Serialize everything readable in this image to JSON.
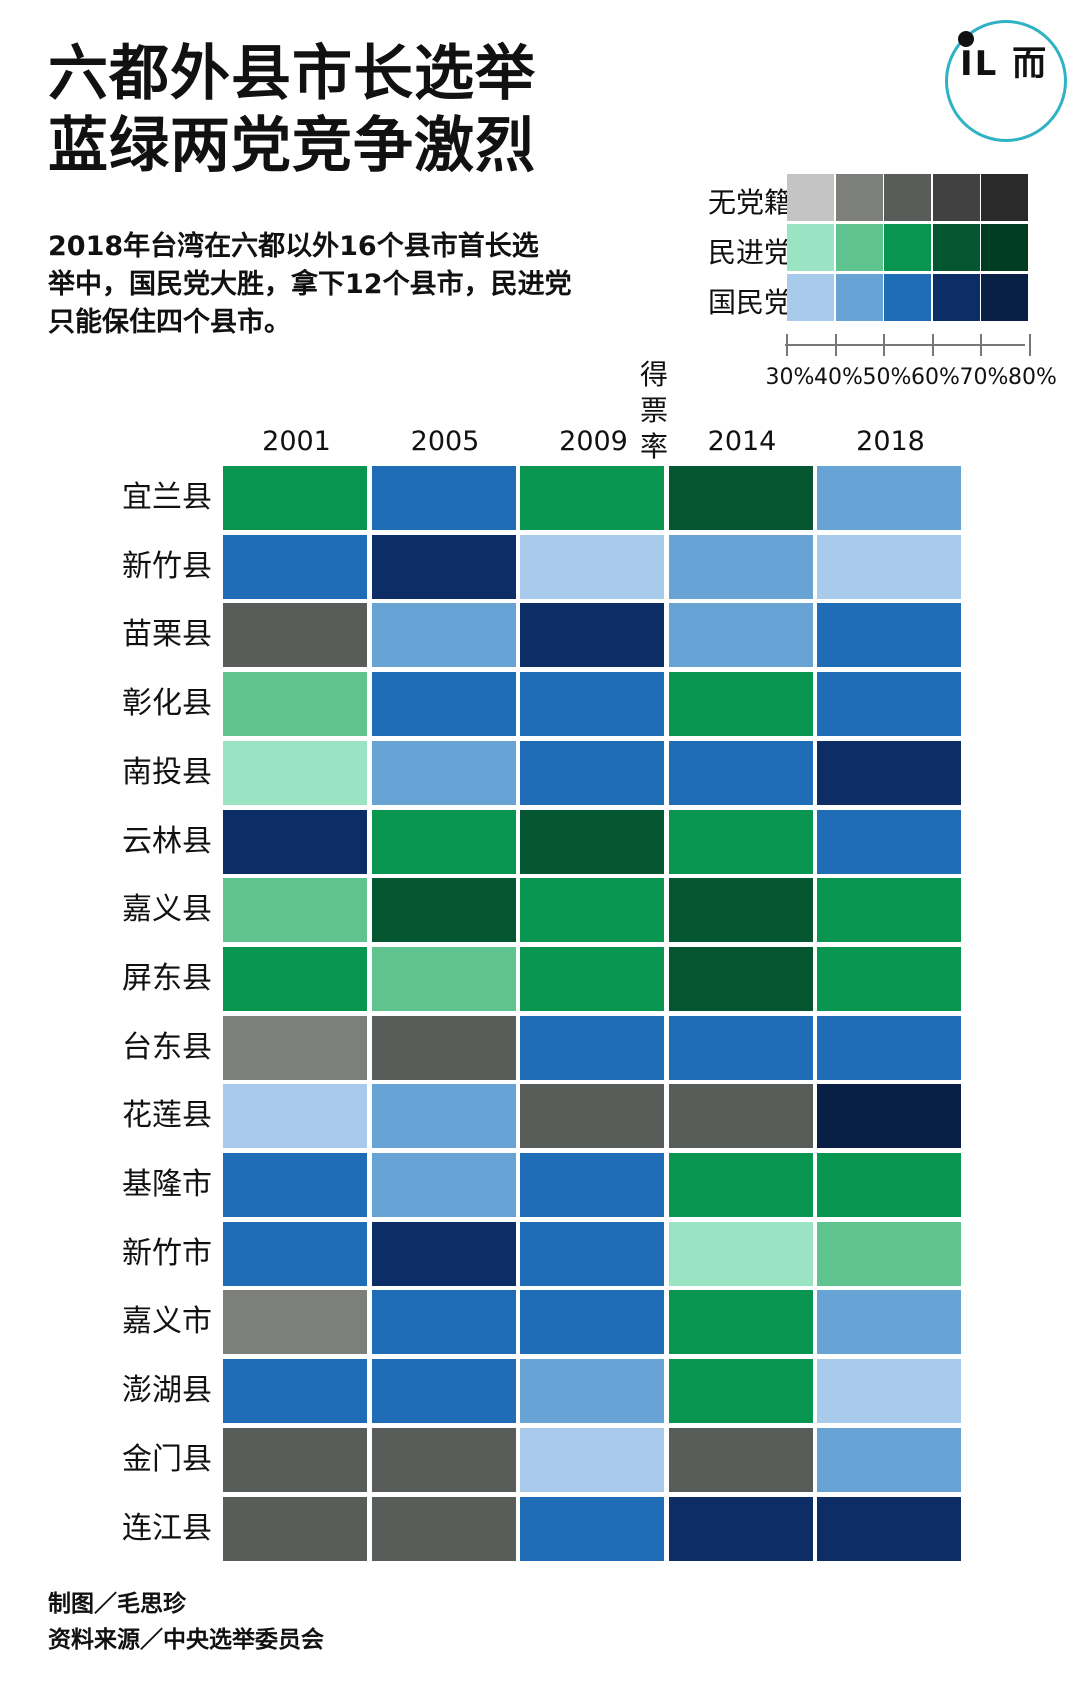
{
  "title_lines": [
    "六都外县市长选举",
    "蓝绿两党竞争激烈"
  ],
  "subtitle_lines": [
    "2018年台湾在六都以外16个县市首长选",
    "举中，国民党大胜，拿下12个县市，民进党",
    "只能保住四个县市。"
  ],
  "logo": {
    "icon": "端-logo-icon",
    "mark": "IL 而",
    "ring_color": "#2fb3c4"
  },
  "legend": {
    "rows": [
      {
        "party": "无党籍",
        "colors": [
          "#c4c4c4",
          "#7d7f7b",
          "#595d59",
          "#414141",
          "#2a2a2a"
        ]
      },
      {
        "party": "民进党",
        "colors": [
          "#9be4c3",
          "#5ec38f",
          "#07954f",
          "#045630",
          "#003d20"
        ]
      },
      {
        "party": "国民党",
        "colors": [
          "#a8cbec",
          "#67a3d5",
          "#1f6db7",
          "#0c2d66",
          "#0a1f45"
        ]
      }
    ],
    "axis_title": "得票率",
    "ticks": [
      "30%",
      "40%",
      "50%",
      "60%",
      "70%",
      "80%"
    ]
  },
  "chart_data": {
    "type": "heatmap",
    "title": "六都外县市长选举 蓝绿两党竞争激烈",
    "x": [
      "2001",
      "2005",
      "2009",
      "2014",
      "2018"
    ],
    "y": [
      "宜兰县",
      "新竹县",
      "苗栗县",
      "彰化县",
      "南投县",
      "云林县",
      "嘉义县",
      "屏东县",
      "台东县",
      "花莲县",
      "基隆市",
      "新竹市",
      "嘉义市",
      "澎湖县",
      "金门县",
      "连江县"
    ],
    "value_meaning": "party of winner and vote-share bin index (0:30-40%, 1:40-50%, 2:50-60%, 3:60-70%, 4:70-80%)",
    "cells": [
      [
        [
          "民进党",
          2
        ],
        [
          "国民党",
          2
        ],
        [
          "民进党",
          2
        ],
        [
          "民进党",
          3
        ],
        [
          "国民党",
          1
        ]
      ],
      [
        [
          "国民党",
          2
        ],
        [
          "国民党",
          3
        ],
        [
          "国民党",
          0
        ],
        [
          "国民党",
          1
        ],
        [
          "国民党",
          0
        ]
      ],
      [
        [
          "无党籍",
          2
        ],
        [
          "国民党",
          1
        ],
        [
          "国民党",
          3
        ],
        [
          "国民党",
          1
        ],
        [
          "国民党",
          2
        ]
      ],
      [
        [
          "民进党",
          1
        ],
        [
          "国民党",
          2
        ],
        [
          "国民党",
          2
        ],
        [
          "民进党",
          2
        ],
        [
          "国民党",
          2
        ]
      ],
      [
        [
          "民进党",
          0
        ],
        [
          "国民党",
          1
        ],
        [
          "国民党",
          2
        ],
        [
          "国民党",
          2
        ],
        [
          "国民党",
          3
        ]
      ],
      [
        [
          "国民党",
          3
        ],
        [
          "民进党",
          2
        ],
        [
          "民进党",
          3
        ],
        [
          "民进党",
          2
        ],
        [
          "国民党",
          2
        ]
      ],
      [
        [
          "民进党",
          1
        ],
        [
          "民进党",
          3
        ],
        [
          "民进党",
          2
        ],
        [
          "民进党",
          3
        ],
        [
          "民进党",
          2
        ]
      ],
      [
        [
          "民进党",
          2
        ],
        [
          "民进党",
          1
        ],
        [
          "民进党",
          2
        ],
        [
          "民进党",
          3
        ],
        [
          "民进党",
          2
        ]
      ],
      [
        [
          "无党籍",
          1
        ],
        [
          "无党籍",
          2
        ],
        [
          "国民党",
          2
        ],
        [
          "国民党",
          2
        ],
        [
          "国民党",
          2
        ]
      ],
      [
        [
          "国民党",
          0
        ],
        [
          "国民党",
          1
        ],
        [
          "无党籍",
          2
        ],
        [
          "无党籍",
          2
        ],
        [
          "国民党",
          4
        ]
      ],
      [
        [
          "国民党",
          2
        ],
        [
          "国民党",
          1
        ],
        [
          "国民党",
          2
        ],
        [
          "民进党",
          2
        ],
        [
          "民进党",
          2
        ]
      ],
      [
        [
          "国民党",
          2
        ],
        [
          "国民党",
          3
        ],
        [
          "国民党",
          2
        ],
        [
          "民进党",
          0
        ],
        [
          "民进党",
          1
        ]
      ],
      [
        [
          "无党籍",
          1
        ],
        [
          "国民党",
          2
        ],
        [
          "国民党",
          2
        ],
        [
          "民进党",
          2
        ],
        [
          "国民党",
          1
        ]
      ],
      [
        [
          "国民党",
          2
        ],
        [
          "国民党",
          2
        ],
        [
          "国民党",
          1
        ],
        [
          "民进党",
          2
        ],
        [
          "国民党",
          0
        ]
      ],
      [
        [
          "无党籍",
          2
        ],
        [
          "无党籍",
          2
        ],
        [
          "国民党",
          0
        ],
        [
          "无党籍",
          2
        ],
        [
          "国民党",
          1
        ]
      ],
      [
        [
          "无党籍",
          2
        ],
        [
          "无党籍",
          2
        ],
        [
          "国民党",
          2
        ],
        [
          "国民党",
          3
        ],
        [
          "国民党",
          3
        ]
      ]
    ]
  },
  "footer": {
    "credit": "制图／毛思珍",
    "source": "资料来源／中央选举委员会"
  }
}
